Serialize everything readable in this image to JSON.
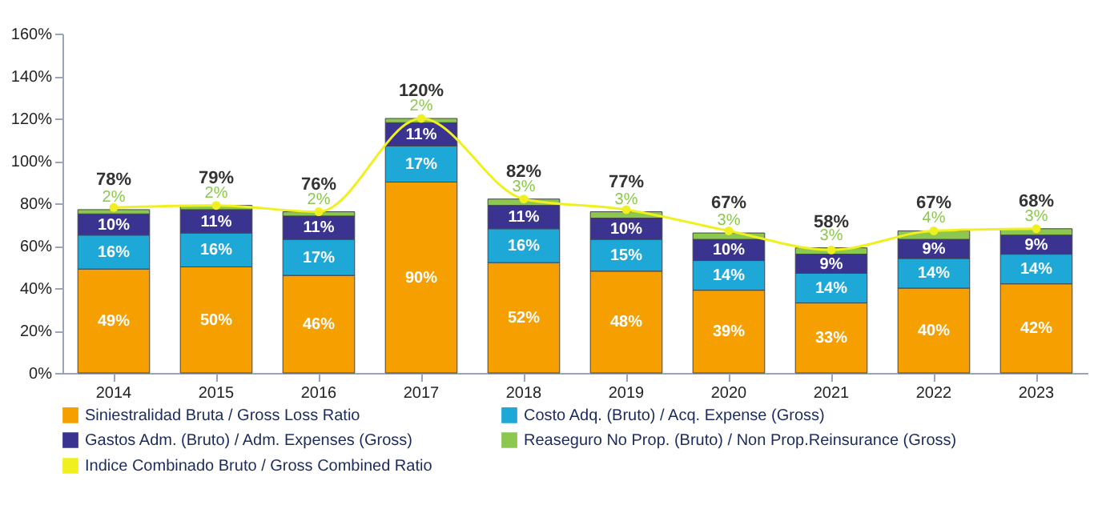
{
  "chart_data": {
    "type": "bar",
    "stacked": true,
    "categories": [
      "2014",
      "2015",
      "2016",
      "2017",
      "2018",
      "2019",
      "2020",
      "2021",
      "2022",
      "2023"
    ],
    "ylim": [
      0,
      160
    ],
    "yticks": [
      {
        "value": 0,
        "label": "0%"
      },
      {
        "value": 20,
        "label": "20%"
      },
      {
        "value": 40,
        "label": "40%"
      },
      {
        "value": 60,
        "label": "60%"
      },
      {
        "value": 80,
        "label": "80%"
      },
      {
        "value": 100,
        "label": "100%"
      },
      {
        "value": 120,
        "label": "120%"
      },
      {
        "value": 140,
        "label": "140%"
      },
      {
        "value": 160,
        "label": "160%"
      }
    ],
    "grid": false,
    "legend": "bottom",
    "marker": "circle",
    "series": [
      {
        "name": "Siniestralidad Bruta / Gross Loss Ratio",
        "color": "#f5a000",
        "values": [
          49,
          50,
          46,
          90,
          52,
          48,
          39,
          33,
          40,
          42
        ],
        "value_labels": [
          "49%",
          "50%",
          "46%",
          "90%",
          "52%",
          "48%",
          "39%",
          "33%",
          "40%",
          "42%"
        ]
      },
      {
        "name": "Costo Adq. (Bruto)  / Acq. Expense (Gross)",
        "color": "#1ea8d8",
        "values": [
          16,
          16,
          17,
          17,
          16,
          15,
          14,
          14,
          14,
          14
        ],
        "value_labels": [
          "16%",
          "16%",
          "17%",
          "17%",
          "16%",
          "15%",
          "14%",
          "14%",
          "14%",
          "14%"
        ]
      },
      {
        "name": "Gastos Adm. (Bruto) / Adm. Expenses (Gross)",
        "color": "#3a3390",
        "values": [
          10,
          11,
          11,
          11,
          11,
          10,
          10,
          9,
          9,
          9
        ],
        "value_labels": [
          "10%",
          "11%",
          "11%",
          "11%",
          "11%",
          "10%",
          "10%",
          "9%",
          "9%",
          "9%"
        ]
      },
      {
        "name": "Reaseguro No Prop. (Bruto) / Non Prop.Reinsurance (Gross)",
        "color": "#8cc850",
        "values": [
          2,
          2,
          2,
          2,
          3,
          3,
          3,
          3,
          4,
          3
        ],
        "value_labels": [
          "2%",
          "2%",
          "2%",
          "2%",
          "3%",
          "3%",
          "3%",
          "3%",
          "4%",
          "3%"
        ]
      },
      {
        "name": "Indice Combinado Bruto / Gross Combined Ratio",
        "type": "line",
        "color": "#f0f020",
        "values": [
          78,
          79,
          76,
          120,
          82,
          77,
          67,
          58,
          67,
          68
        ],
        "value_labels": [
          "78%",
          "79%",
          "76%",
          "120%",
          "82%",
          "77%",
          "67%",
          "58%",
          "67%",
          "68%"
        ]
      }
    ]
  }
}
